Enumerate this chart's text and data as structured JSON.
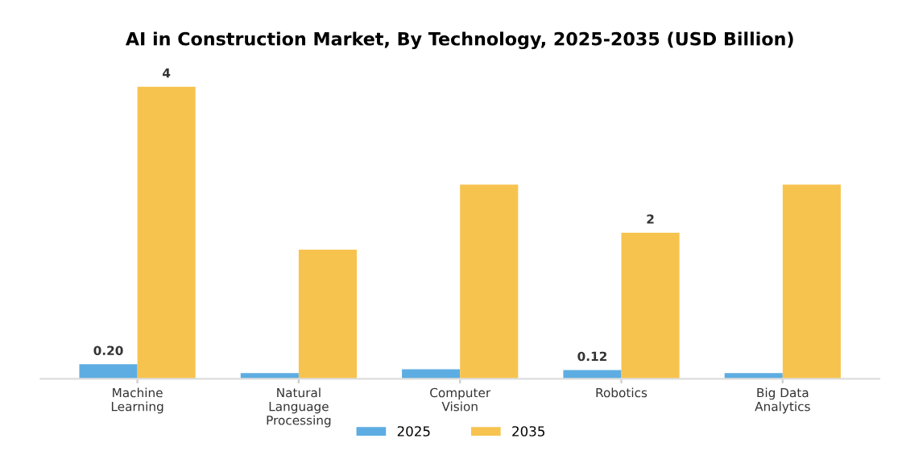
{
  "chart_data": {
    "type": "bar",
    "title": "AI in Construction Market, By Technology, 2025-2035 (USD Billion)",
    "categories": [
      "Machine\nLearning",
      "Natural\nLanguage\nProcessing",
      "Computer\nVision",
      "Robotics",
      "Big Data\nAnalytics"
    ],
    "series": [
      {
        "name": "2025",
        "color": "#5dade2",
        "values": [
          0.2,
          0.08,
          0.13,
          0.12,
          0.08
        ],
        "value_labels": [
          "0.20",
          null,
          null,
          "0.12",
          null
        ]
      },
      {
        "name": "2035",
        "color": "#f7c34f",
        "values": [
          4,
          1.77,
          2.66,
          2,
          2.66
        ],
        "value_labels": [
          "4",
          null,
          null,
          "2",
          null
        ]
      }
    ],
    "legend": "bottom",
    "grid": false
  }
}
